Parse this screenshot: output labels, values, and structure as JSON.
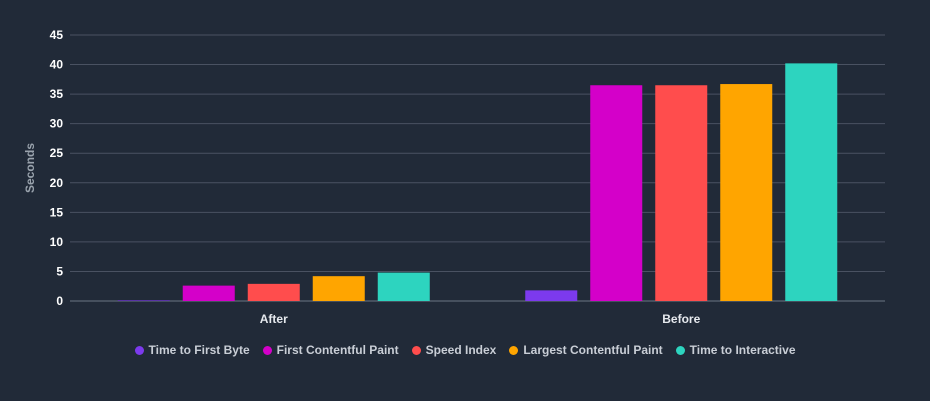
{
  "chart_data": {
    "type": "bar",
    "categories": [
      "After",
      "Before"
    ],
    "series": [
      {
        "name": "Time to First Byte",
        "color": "#7c3aed",
        "values": [
          0.1,
          1.8
        ]
      },
      {
        "name": "First Contentful Paint",
        "color": "#d400c9",
        "values": [
          2.6,
          36.5
        ]
      },
      {
        "name": "Speed Index",
        "color": "#ff4d4d",
        "values": [
          2.9,
          36.5
        ]
      },
      {
        "name": "Largest Contentful Paint",
        "color": "#ffa500",
        "values": [
          4.2,
          36.7
        ]
      },
      {
        "name": "Time to Interactive",
        "color": "#2dd4bf",
        "values": [
          4.8,
          40.2
        ]
      }
    ],
    "ylabel": "Seconds",
    "ylim": [
      0,
      45
    ],
    "yticks": [
      "0",
      "5",
      "10",
      "15",
      "20",
      "25",
      "30",
      "35",
      "40",
      "45"
    ],
    "grid": true,
    "legend_position": "bottom"
  }
}
